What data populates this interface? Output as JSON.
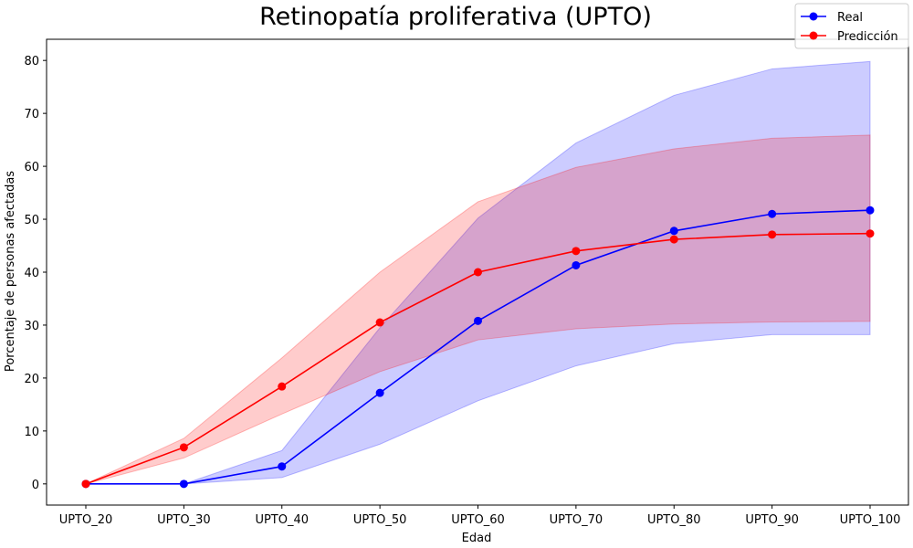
{
  "chart_data": {
    "type": "line",
    "title": "Retinopatía proliferativa (UPTO)",
    "xlabel": "Edad",
    "ylabel": "Porcentaje de personas afectadas",
    "categories": [
      "UPTO_20",
      "UPTO_30",
      "UPTO_40",
      "UPTO_50",
      "UPTO_60",
      "UPTO_70",
      "UPTO_80",
      "UPTO_90",
      "UPTO_100"
    ],
    "ylim": [
      -4,
      84
    ],
    "yticks": [
      0,
      10,
      20,
      30,
      40,
      50,
      60,
      70,
      80
    ],
    "grid": false,
    "legend": "top-right",
    "series": [
      {
        "name": "Real",
        "color": "#0000ff",
        "band_color": "#0000ff",
        "values": [
          0,
          0,
          3.3,
          17.2,
          30.8,
          41.3,
          47.8,
          51.0,
          51.7
        ],
        "lower": [
          0,
          0,
          1.2,
          7.5,
          15.7,
          22.3,
          26.5,
          28.2,
          28.2
        ],
        "upper": [
          0,
          0,
          6.3,
          29.5,
          50.2,
          64.4,
          73.4,
          78.4,
          79.8
        ]
      },
      {
        "name": "Predicción",
        "color": "#ff0000",
        "band_color": "#ff0000",
        "values": [
          0,
          6.9,
          18.4,
          30.5,
          40.0,
          44.0,
          46.2,
          47.1,
          47.3
        ],
        "lower": [
          0,
          4.9,
          13.2,
          21.2,
          27.2,
          29.3,
          30.2,
          30.6,
          30.7
        ],
        "upper": [
          0,
          8.6,
          23.8,
          40.0,
          53.3,
          59.8,
          63.3,
          65.3,
          65.9
        ]
      }
    ]
  }
}
